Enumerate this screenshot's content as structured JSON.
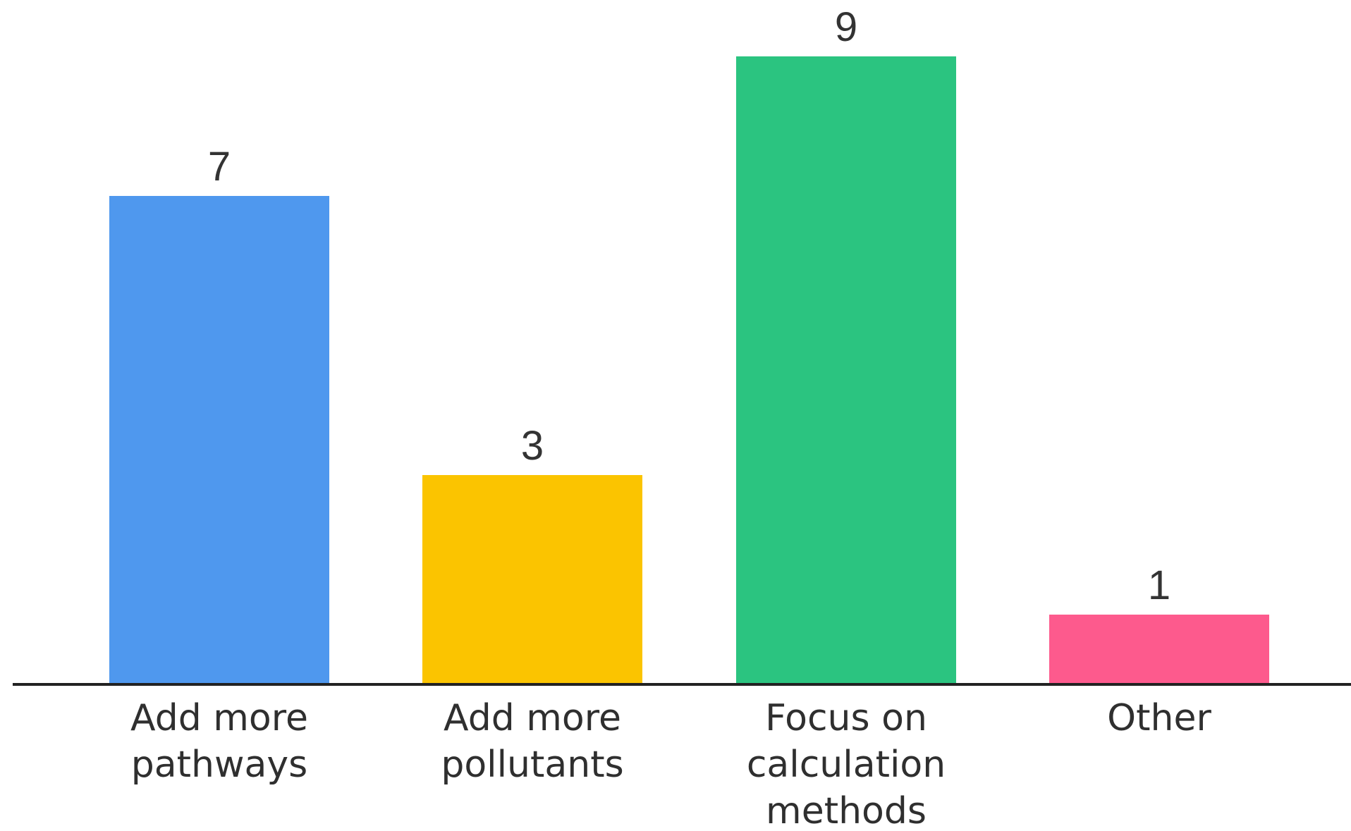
{
  "chart_data": {
    "type": "bar",
    "categories": [
      [
        "Add more",
        "pathways"
      ],
      [
        "Add more",
        "pollutants"
      ],
      [
        "Focus on",
        "calculation",
        "methods"
      ],
      [
        "Other"
      ]
    ],
    "values": [
      7,
      3,
      9,
      1
    ],
    "data_labels": [
      "7",
      "3",
      "9",
      "1"
    ],
    "colors": [
      "#4f98ee",
      "#fbc400",
      "#2bc480",
      "#fd5a8d"
    ],
    "title": "",
    "xlabel": "",
    "ylabel": "",
    "ylim": [
      0,
      9
    ],
    "grid": false,
    "legend": "none"
  }
}
